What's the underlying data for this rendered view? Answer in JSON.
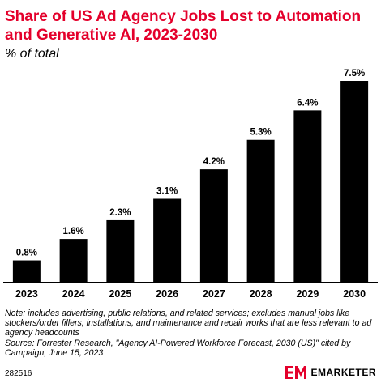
{
  "title": "Share of US Ad Agency Jobs Lost to Automation and Generative AI, 2023-2030",
  "subtitle": "% of total",
  "notes": {
    "note": "Note: includes advertising, public relations, and related services; excludes manual jobs like stockers/order fillers, installations, and maintenance and repair works that are less relevant to ad agency headcounts",
    "source": "Source: Forrester Research, \"Agency AI-Powered Workforce Forecast, 2030 (US)\" cited by Campaign, June 15, 2023"
  },
  "footer": {
    "chart_id": "282516",
    "brand": "EMARKETER",
    "brand_color": "#e4002b"
  },
  "colors": {
    "bar": "#000000",
    "title": "#e4002b"
  },
  "chart_data": {
    "type": "bar",
    "title": "Share of US Ad Agency Jobs Lost to Automation and Generative AI, 2023-2030",
    "subtitle": "% of total",
    "xlabel": "",
    "ylabel": "",
    "categories": [
      "2023",
      "2024",
      "2025",
      "2026",
      "2027",
      "2028",
      "2029",
      "2030"
    ],
    "values": [
      0.8,
      1.6,
      2.3,
      3.1,
      4.2,
      5.3,
      6.4,
      7.5
    ],
    "value_labels": [
      "0.8%",
      "1.6%",
      "2.3%",
      "3.1%",
      "4.2%",
      "5.3%",
      "6.4%",
      "7.5%"
    ],
    "ylim": [
      0,
      7.5
    ],
    "grid": false,
    "legend": "none"
  }
}
